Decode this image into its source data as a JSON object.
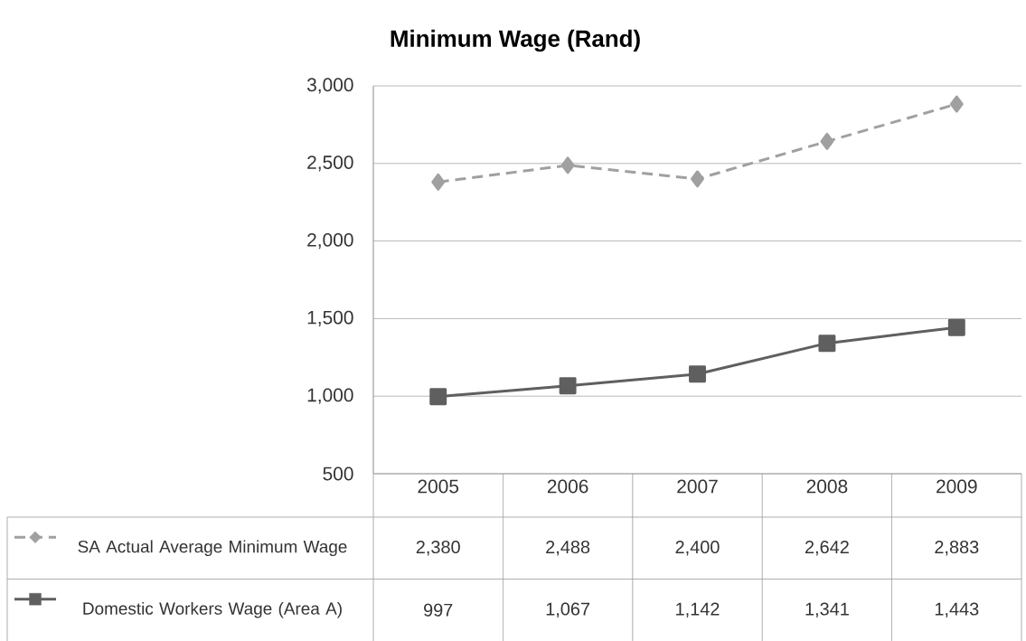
{
  "chart_data": {
    "type": "line",
    "title": "Minimum Wage (Rand)",
    "categories": [
      "2005",
      "2006",
      "2007",
      "2008",
      "2009"
    ],
    "series": [
      {
        "name": "SA Actual Average Minimum Wage",
        "color": "#a0a0a0",
        "marker": "diamond",
        "line_style": "dashed",
        "values": [
          2380,
          2488,
          2400,
          2642,
          2883
        ],
        "value_labels": [
          "2,380",
          "2,488",
          "2,400",
          "2,642",
          "2,883"
        ]
      },
      {
        "name": "Domestic Workers Wage (Area A)",
        "color": "#5f5f5f",
        "marker": "square",
        "line_style": "solid",
        "values": [
          997,
          1067,
          1142,
          1341,
          1443
        ],
        "value_labels": [
          "997",
          "1,067",
          "1,142",
          "1,341",
          "1,443"
        ]
      }
    ],
    "ylim": [
      500,
      3000
    ],
    "yticks": [
      {
        "value": 500,
        "label": "500"
      },
      {
        "value": 1000,
        "label": "1,000"
      },
      {
        "value": 1500,
        "label": "1,500"
      },
      {
        "value": 2000,
        "label": "2,000"
      },
      {
        "value": 2500,
        "label": "2,500"
      },
      {
        "value": 3000,
        "label": "3,000"
      }
    ],
    "grid": "y",
    "legend": "bottom"
  }
}
